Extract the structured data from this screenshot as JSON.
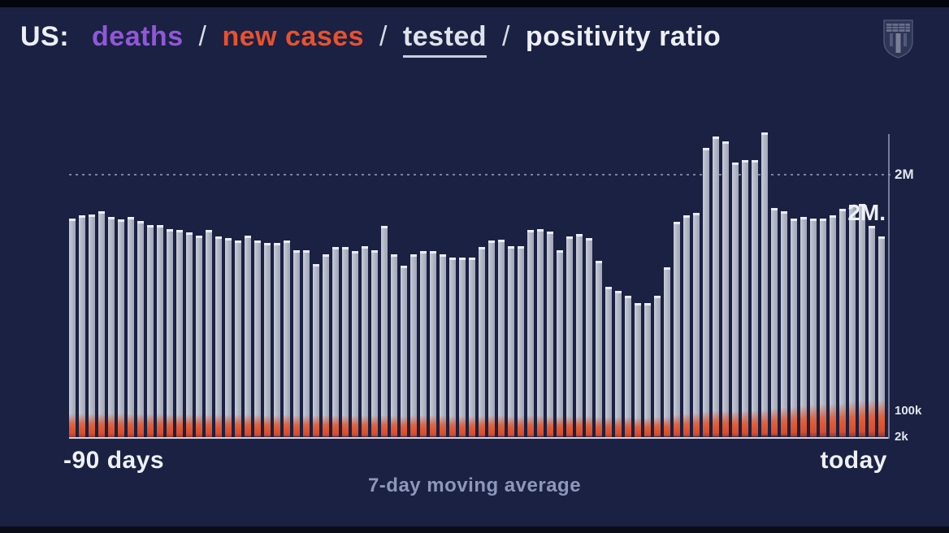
{
  "title": {
    "prefix": "US:",
    "separator": "/",
    "items": [
      {
        "label": "deaths",
        "color": "#9257d8",
        "active": false
      },
      {
        "label": "new cases",
        "color": "#e8512f",
        "active": false
      },
      {
        "label": "tested",
        "color": "#dfe3ec",
        "active": true
      },
      {
        "label": "positivity ratio",
        "color": "#edeff5",
        "active": false
      }
    ]
  },
  "logo": {
    "name": "university-shield-logo"
  },
  "axis": {
    "gridline_label": "2M",
    "cases_current_label": "100k",
    "deaths_current_label": "2k",
    "last_value_annotation": "2M.",
    "x_left": "-90 days",
    "x_right": "today",
    "caption": "7-day moving average"
  },
  "colors": {
    "background": "#1a2142",
    "bar": "#b0b5c4",
    "bar_cap": "#e9ecf3",
    "new_cases": "#e05a34",
    "deaths": "#3f2b47",
    "grid": "#9aa2ba",
    "text": "#edeff5",
    "muted_text": "#8e97ba"
  },
  "chart_data": {
    "type": "bar",
    "title": "US: deaths / new cases / tested / positivity ratio",
    "subtitle": "7-day moving average",
    "x_range": [
      "-90 days",
      "today"
    ],
    "grid": "single dashed horizontal reference line at 2M (tested scale)",
    "legend_position": "title acts as legend (color-coded series names)",
    "series_units": {
      "tested": "millions per day",
      "new_cases": "thousands per day",
      "deaths": "thousands per day"
    },
    "y_anchors": {
      "tested_gridline": "2M",
      "new_cases_current": "100k",
      "deaths_current": "2k"
    },
    "series": [
      {
        "name": "tested",
        "color": "#b0b5c4",
        "values_millions": [
          1.67,
          1.69,
          1.7,
          1.72,
          1.68,
          1.66,
          1.68,
          1.65,
          1.62,
          1.62,
          1.59,
          1.58,
          1.56,
          1.54,
          1.58,
          1.53,
          1.52,
          1.5,
          1.54,
          1.5,
          1.48,
          1.48,
          1.5,
          1.43,
          1.43,
          1.32,
          1.4,
          1.45,
          1.45,
          1.42,
          1.46,
          1.43,
          1.61,
          1.4,
          1.31,
          1.4,
          1.42,
          1.42,
          1.4,
          1.37,
          1.37,
          1.37,
          1.45,
          1.5,
          1.51,
          1.46,
          1.46,
          1.58,
          1.59,
          1.57,
          1.43,
          1.53,
          1.55,
          1.52,
          1.35,
          1.15,
          1.12,
          1.08,
          1.03,
          1.03,
          1.08,
          1.3,
          1.64,
          1.69,
          1.71,
          2.2,
          2.29,
          2.25,
          2.09,
          2.11,
          2.11,
          2.32,
          1.75,
          1.72,
          1.67,
          1.68,
          1.67,
          1.67,
          1.69,
          1.74,
          1.77,
          1.78,
          1.61,
          1.53
        ]
      },
      {
        "name": "new cases",
        "color": "#e05a34",
        "values_thousands": [
          57,
          57,
          58,
          58,
          57,
          56,
          56,
          57,
          56,
          56,
          55,
          55,
          54,
          54,
          55,
          54,
          53,
          53,
          54,
          53,
          52,
          52,
          53,
          52,
          51,
          50,
          51,
          52,
          51,
          51,
          51,
          50,
          52,
          50,
          49,
          50,
          50,
          51,
          50,
          49,
          49,
          48,
          49,
          50,
          50,
          49,
          49,
          50,
          50,
          49,
          48,
          48,
          49,
          48,
          47,
          46,
          45,
          45,
          44,
          44,
          45,
          47,
          55,
          58,
          60,
          65,
          68,
          68,
          66,
          67,
          68,
          70,
          75,
          78,
          80,
          83,
          86,
          88,
          90,
          93,
          96,
          99,
          102,
          104
        ]
      },
      {
        "name": "deaths",
        "color": "#3f2b47",
        "values_thousands": [
          1.3,
          1.3,
          1.3,
          1.3,
          1.3,
          1.3,
          1.3,
          1.3,
          1.3,
          1.3,
          1.3,
          1.3,
          1.4,
          1.4,
          1.4,
          1.4,
          1.4,
          1.4,
          1.5,
          1.5,
          1.5,
          1.5,
          1.5,
          1.5,
          1.5,
          1.5,
          1.5,
          1.5,
          1.5,
          1.5,
          1.5,
          1.5,
          1.5,
          1.5,
          1.5,
          1.5,
          1.5,
          1.5,
          1.5,
          1.5,
          1.6,
          1.6,
          1.6,
          1.6,
          1.6,
          1.6,
          1.6,
          1.6,
          1.6,
          1.6,
          1.6,
          1.6,
          1.6,
          1.6,
          1.5,
          1.4,
          1.4,
          1.4,
          1.4,
          1.5,
          1.6,
          1.7,
          1.8,
          1.8,
          1.9,
          1.9,
          1.9,
          2.0,
          2.0,
          2.0,
          2.0,
          2.1,
          2.1,
          2.1,
          2.0,
          2.0,
          2.0,
          2.0,
          2.0,
          2.0,
          2.0,
          2.0,
          2.0,
          2.0
        ]
      }
    ]
  }
}
